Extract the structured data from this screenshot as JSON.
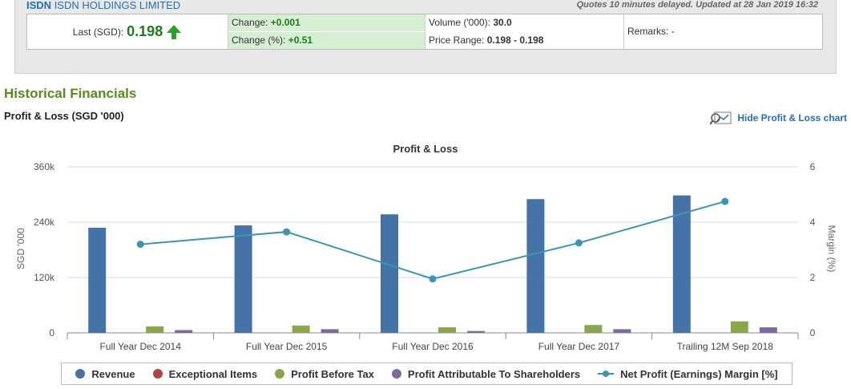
{
  "quote": {
    "ticker": "ISDN",
    "company": "ISDN HOLDINGS LIMITED",
    "delay_note": "Quotes 10 minutes delayed. Updated at 28 Jan 2019 16:32",
    "last_label": "Last (SGD):",
    "last_value": "0.198",
    "change_label": "Change:",
    "change_value": "+0.001",
    "change_pct_label": "Change (%):",
    "change_pct_value": "+0.51",
    "volume_label": "Volume ('000):",
    "volume_value": "30.0",
    "range_label": "Price Range:",
    "range_value": "0.198 - 0.198",
    "remarks_label": "Remarks:",
    "remarks_value": "-"
  },
  "section_title": "Historical Financials",
  "pl_title": "Profit & Loss (SGD '000)",
  "hide_link": "Hide Profit & Loss chart",
  "colors": {
    "revenue": "#4572a7",
    "exceptional": "#aa4643",
    "pbt": "#89a54e",
    "attrib": "#80699b",
    "margin": "#3d96ae"
  },
  "chart_data": {
    "type": "bar",
    "title": "Profit & Loss",
    "ylabel": "SGD '000",
    "y2label": "Margin (%)",
    "ylim": [
      0,
      360000
    ],
    "y2lim": [
      0,
      6
    ],
    "yticks": [
      "0",
      "120k",
      "240k",
      "360k"
    ],
    "y2ticks": [
      "0",
      "2",
      "4",
      "6"
    ],
    "categories": [
      "Full Year Dec 2014",
      "Full Year Dec 2015",
      "Full Year Dec 2016",
      "Full Year Dec 2017",
      "Trailing 12M Sep 2018"
    ],
    "series": [
      {
        "name": "Revenue",
        "type": "bar",
        "values": [
          228000,
          233000,
          257000,
          290000,
          298000
        ]
      },
      {
        "name": "Exceptional Items",
        "type": "bar",
        "values": [
          0,
          0,
          0,
          0,
          0
        ]
      },
      {
        "name": "Profit Before Tax",
        "type": "bar",
        "values": [
          14000,
          16000,
          12000,
          17000,
          25000
        ]
      },
      {
        "name": "Profit Attributable To Shareholders",
        "type": "bar",
        "values": [
          6000,
          8000,
          4000,
          8000,
          12000
        ]
      },
      {
        "name": "Net Profit (Earnings) Margin [%]",
        "type": "line",
        "axis": "right",
        "values": [
          3.2,
          3.65,
          1.95,
          3.25,
          4.75
        ]
      }
    ],
    "grid": true,
    "legend_position": "bottom"
  }
}
